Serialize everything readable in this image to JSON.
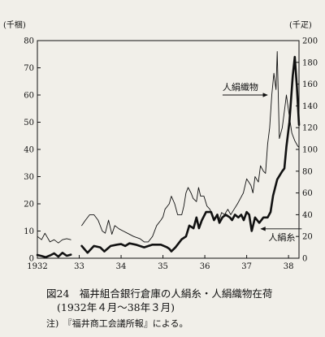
{
  "caption": {
    "title": "図24　福井組合銀行倉庫の人絹糸・人絹織物在荷",
    "subtitle": "(1932年４月〜38年３月)",
    "note": "注)　『福井商工会議所報』による。"
  },
  "chart_data": {
    "type": "line",
    "x_ticks": [
      "1932",
      "33",
      "34",
      "35",
      "36",
      "37",
      "38"
    ],
    "y_left": {
      "unit": "(千梱)",
      "ticks": [
        0,
        10,
        20,
        30,
        40,
        50,
        60,
        70,
        80
      ],
      "range": [
        0,
        80
      ]
    },
    "y_right": {
      "unit": "(千疋)",
      "ticks": [
        0,
        20,
        40,
        60,
        80,
        100,
        120,
        140,
        160,
        180,
        200
      ],
      "range": [
        0,
        200
      ]
    },
    "grid": false,
    "series": [
      {
        "name": "人絹糸",
        "axis": "left",
        "style": "thick",
        "segments": [
          [
            [
              1932.0,
              1.2
            ],
            [
              1932.1,
              0.8
            ],
            [
              1932.2,
              0.4
            ],
            [
              1932.3,
              1.0
            ],
            [
              1932.4,
              1.8
            ],
            [
              1932.5,
              0.6
            ],
            [
              1932.6,
              2.0
            ],
            [
              1932.7,
              0.9
            ],
            [
              1932.8,
              1.3
            ]
          ],
          [
            [
              1933.06,
              4.5
            ],
            [
              1933.2,
              2.0
            ],
            [
              1933.35,
              4.5
            ],
            [
              1933.5,
              4.0
            ],
            [
              1933.6,
              2.5
            ],
            [
              1933.75,
              4.5
            ],
            [
              1933.9,
              5.0
            ],
            [
              1934.0,
              5.2
            ],
            [
              1934.1,
              4.5
            ],
            [
              1934.2,
              5.5
            ],
            [
              1934.35,
              5.0
            ],
            [
              1934.55,
              4.0
            ],
            [
              1934.75,
              5.0
            ],
            [
              1934.95,
              5.0
            ],
            [
              1935.1,
              4.0
            ],
            [
              1935.15,
              3.5
            ],
            [
              1935.2,
              2.5
            ],
            [
              1935.3,
              4.0
            ],
            [
              1935.45,
              7.0
            ],
            [
              1935.55,
              8.0
            ],
            [
              1935.63,
              12.0
            ],
            [
              1935.73,
              11.0
            ],
            [
              1935.8,
              15.0
            ],
            [
              1935.86,
              11.0
            ],
            [
              1935.93,
              14.0
            ],
            [
              1936.03,
              17.0
            ],
            [
              1936.15,
              17.0
            ],
            [
              1936.22,
              14.0
            ],
            [
              1936.3,
              16.0
            ],
            [
              1936.35,
              13.0
            ],
            [
              1936.42,
              15.0
            ],
            [
              1936.5,
              16.0
            ],
            [
              1936.6,
              15.0
            ],
            [
              1936.65,
              14.0
            ],
            [
              1936.72,
              16.0
            ],
            [
              1936.8,
              15.0
            ],
            [
              1936.87,
              16.0
            ],
            [
              1936.93,
              14.0
            ],
            [
              1937.0,
              17.0
            ],
            [
              1937.06,
              16.0
            ],
            [
              1937.12,
              10.0
            ],
            [
              1937.2,
              15.0
            ],
            [
              1937.3,
              13.0
            ],
            [
              1937.4,
              15.0
            ],
            [
              1937.5,
              15.0
            ],
            [
              1937.57,
              17.0
            ],
            [
              1937.63,
              23.0
            ],
            [
              1937.73,
              29.0
            ],
            [
              1937.85,
              32.0
            ],
            [
              1937.9,
              33.0
            ],
            [
              1937.95,
              41.0
            ],
            [
              1938.02,
              50.0
            ],
            [
              1938.1,
              67.0
            ],
            [
              1938.15,
              74.0
            ],
            [
              1938.2,
              63.0
            ],
            [
              1938.25,
              49.0
            ]
          ]
        ]
      },
      {
        "name": "人絹織物",
        "axis": "right",
        "style": "thin",
        "segments": [
          [
            [
              1932.0,
              20
            ],
            [
              1932.1,
              17
            ],
            [
              1932.18,
              23
            ],
            [
              1932.3,
              15
            ],
            [
              1932.4,
              17
            ],
            [
              1932.5,
              14
            ],
            [
              1932.6,
              17
            ],
            [
              1932.7,
              18
            ],
            [
              1932.8,
              17
            ]
          ],
          [
            [
              1933.06,
              30
            ],
            [
              1933.15,
              35
            ],
            [
              1933.25,
              40
            ],
            [
              1933.35,
              40
            ],
            [
              1933.45,
              35
            ],
            [
              1933.55,
              25
            ],
            [
              1933.62,
              23
            ],
            [
              1933.7,
              35
            ],
            [
              1933.78,
              22
            ],
            [
              1933.85,
              30
            ],
            [
              1933.95,
              27
            ],
            [
              1934.05,
              25
            ],
            [
              1934.15,
              23
            ],
            [
              1934.3,
              20
            ],
            [
              1934.45,
              18
            ],
            [
              1934.55,
              15
            ],
            [
              1934.65,
              15
            ],
            [
              1934.75,
              20
            ],
            [
              1934.85,
              30
            ],
            [
              1934.95,
              35
            ],
            [
              1935.0,
              38
            ],
            [
              1935.05,
              45
            ],
            [
              1935.15,
              50
            ],
            [
              1935.2,
              57
            ],
            [
              1935.28,
              50
            ],
            [
              1935.35,
              40
            ],
            [
              1935.45,
              40
            ],
            [
              1935.5,
              48
            ],
            [
              1935.55,
              60
            ],
            [
              1935.6,
              65
            ],
            [
              1935.67,
              60
            ],
            [
              1935.72,
              55
            ],
            [
              1935.8,
              52
            ],
            [
              1935.85,
              65
            ],
            [
              1935.9,
              57
            ],
            [
              1935.98,
              57
            ],
            [
              1936.05,
              48
            ],
            [
              1936.12,
              45
            ],
            [
              1936.18,
              40
            ],
            [
              1936.22,
              35
            ],
            [
              1936.28,
              40
            ],
            [
              1936.33,
              33
            ],
            [
              1936.4,
              42
            ],
            [
              1936.47,
              40
            ],
            [
              1936.55,
              45
            ],
            [
              1936.62,
              40
            ],
            [
              1936.7,
              45
            ],
            [
              1936.78,
              50
            ],
            [
              1936.85,
              55
            ],
            [
              1936.92,
              60
            ],
            [
              1937.0,
              73
            ],
            [
              1937.05,
              70
            ],
            [
              1937.1,
              67
            ],
            [
              1937.15,
              60
            ],
            [
              1937.2,
              75
            ],
            [
              1937.28,
              70
            ],
            [
              1937.33,
              85
            ],
            [
              1937.4,
              80
            ],
            [
              1937.45,
              78
            ],
            [
              1937.5,
              105
            ],
            [
              1937.55,
              120
            ],
            [
              1937.6,
              150
            ],
            [
              1937.65,
              170
            ],
            [
              1937.7,
              155
            ],
            [
              1937.73,
              190
            ],
            [
              1937.78,
              110
            ],
            [
              1937.85,
              120
            ],
            [
              1937.9,
              135
            ],
            [
              1937.95,
              150
            ],
            [
              1938.02,
              130
            ],
            [
              1938.08,
              115
            ],
            [
              1938.15,
              108
            ],
            [
              1938.22,
              103
            ],
            [
              1938.25,
              102
            ]
          ]
        ]
      }
    ],
    "annotations": [
      {
        "text": "人絹織物",
        "target_series": "人絹織物",
        "at": [
          1937.55,
          150
        ],
        "arrow": "right"
      },
      {
        "text": "人絹糸",
        "target_series": "人絹糸",
        "at": [
          1937.5,
          12
        ],
        "arrow": "left"
      }
    ]
  }
}
